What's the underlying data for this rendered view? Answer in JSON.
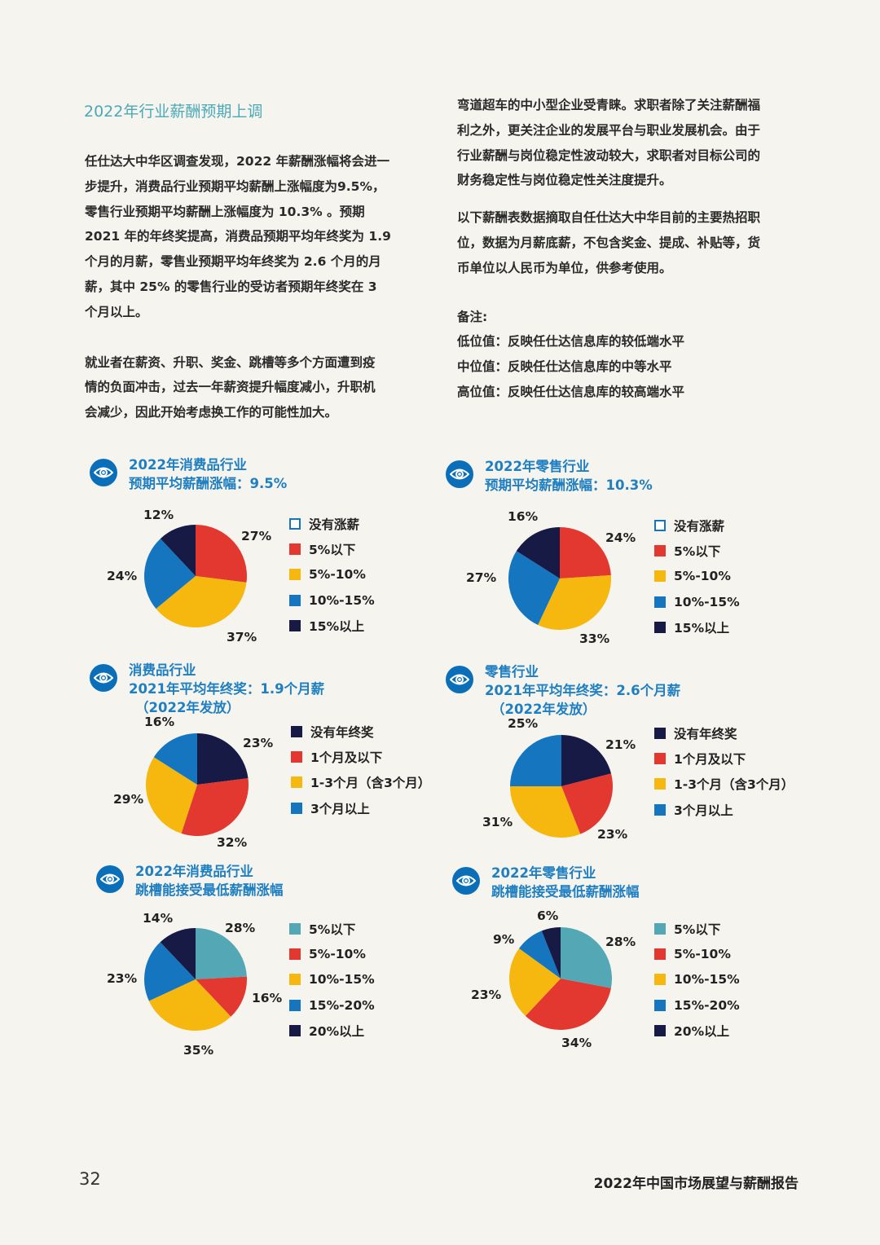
{
  "section_title": "2022年行业薪酬预期上调",
  "left_paragraphs": [
    [
      "任仕达大中华区调查发现，2022 年薪酬涨幅将会进一",
      "步提升，消费品行业预期平均薪酬上涨幅度为9.5%，",
      "零售行业预期平均薪酬上涨幅度为 10.3% 。预期",
      "2021 年的年终奖提高，消费品预期平均年终奖为 1.9",
      "个月的月薪，零售业预期平均年终奖为 2.6 个月的月",
      "薪，其中 25% 的零售行业的受访者预期年终奖在 3",
      "个月以上。"
    ],
    [
      "就业者在薪资、升职、奖金、跳槽等多个方面遭到疫",
      "情的负面冲击，过去一年薪资提升幅度减小，升职机",
      "会减少，因此开始考虑换工作的可能性加大。"
    ]
  ],
  "right_paragraphs": [
    [
      "弯道超车的中小型企业受青睐。求职者除了关注薪酬福",
      "利之外，更关注企业的发展平台与职业发展机会。由于",
      "行业薪酬与岗位稳定性波动较大，求职者对目标公司的",
      "财务稳定性与岗位稳定性关注度提升。"
    ],
    [
      "以下薪酬表数据摘取自任仕达大中华目前的主要热招职",
      "位，数据为月薪底薪，不包含奖金、提成、补贴等，货",
      "币单位以人民币为单位，供参考使用。"
    ],
    [
      "备注:",
      "低位值：反映任仕达信息库的较低端水平",
      "中位值：反映任仕达信息库的中等水平",
      "高位值：反映任仕达信息库的较高端水平"
    ]
  ],
  "footer": {
    "page_number": "32",
    "report_title": "2022年中国市场展望与薪酬报告"
  },
  "chart_data": [
    {
      "type": "pie",
      "title": [
        "2022年消费品行业",
        "预期平均薪酬涨幅：9.5%"
      ],
      "categories": [
        "没有涨薪",
        "5%以下",
        "5%-10%",
        "10%-15%",
        "15%以上"
      ],
      "values": [
        0,
        27,
        37,
        24,
        12
      ],
      "colors": [
        "#ffffff",
        "#e2382f",
        "#f6b80f",
        "#1576bf",
        "#171a45"
      ],
      "labels": [
        "",
        "27%",
        "37%",
        "24%",
        "12%"
      ]
    },
    {
      "type": "pie",
      "title": [
        "2022年零售行业",
        "预期平均薪酬涨幅：10.3%"
      ],
      "categories": [
        "没有涨薪",
        "5%以下",
        "5%-10%",
        "10%-15%",
        "15%以上"
      ],
      "values": [
        0,
        24,
        33,
        27,
        16
      ],
      "colors": [
        "#ffffff",
        "#e2382f",
        "#f6b80f",
        "#1576bf",
        "#171a45"
      ],
      "labels": [
        "",
        "24%",
        "33%",
        "27%",
        "16%"
      ]
    },
    {
      "type": "pie",
      "title": [
        "消费品行业",
        "2021年平均年终奖：1.9个月薪",
        "（2022年发放）"
      ],
      "categories": [
        "没有年终奖",
        "1个月及以下",
        "1-3个月（含3个月）",
        "3个月以上"
      ],
      "values": [
        23,
        32,
        29,
        16
      ],
      "colors": [
        "#171a45",
        "#e2382f",
        "#f6b80f",
        "#1576bf"
      ],
      "labels": [
        "23%",
        "32%",
        "29%",
        "16%"
      ]
    },
    {
      "type": "pie",
      "title": [
        "零售行业",
        "2021年平均年终奖：2.6个月薪",
        "（2022年发放）"
      ],
      "categories": [
        "没有年终奖",
        "1个月及以下",
        "1-3个月（含3个月）",
        "3个月以上"
      ],
      "values": [
        21,
        23,
        31,
        25
      ],
      "colors": [
        "#171a45",
        "#e2382f",
        "#f6b80f",
        "#1576bf"
      ],
      "labels": [
        "21%",
        "23%",
        "31%",
        "25%"
      ]
    },
    {
      "type": "pie",
      "title": [
        "2022年消费品行业",
        "跳槽能接受最低薪酬涨幅"
      ],
      "categories": [
        "5%以下",
        "5%-10%",
        "10%-15%",
        "15%-20%",
        "20%以上"
      ],
      "values": [
        28,
        16,
        35,
        23,
        14
      ],
      "colors": [
        "#54a8b6",
        "#e2382f",
        "#f6b80f",
        "#1576bf",
        "#171a45"
      ],
      "labels": [
        "28%",
        "16%",
        "35%",
        "23%",
        "14%"
      ]
    },
    {
      "type": "pie",
      "title": [
        "2022年零售行业",
        "跳槽能接受最低薪酬涨幅"
      ],
      "categories": [
        "5%以下",
        "5%-10%",
        "10%-15%",
        "15%-20%",
        "20%以上"
      ],
      "values": [
        28,
        34,
        23,
        9,
        6
      ],
      "colors": [
        "#54a8b6",
        "#e2382f",
        "#f6b80f",
        "#1576bf",
        "#171a45"
      ],
      "labels": [
        "28%",
        "34%",
        "23%",
        "9%",
        "6%"
      ]
    }
  ]
}
